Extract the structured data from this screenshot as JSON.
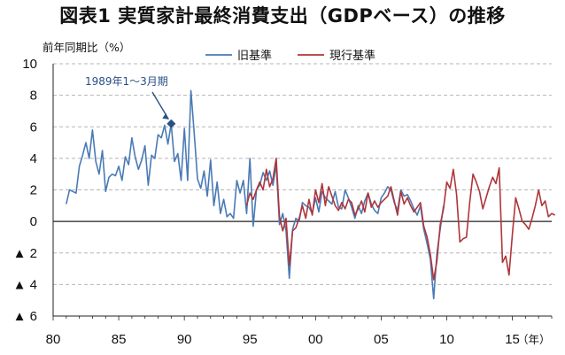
{
  "title": "図表1 実質家計最終消費支出（GDPベース）の推移",
  "chart_data": {
    "type": "line",
    "ylabel": "前年同期比（%）",
    "xlabel": "（年）",
    "ylim": [
      -6,
      10
    ],
    "xlim": [
      1980,
      2018
    ],
    "x_ticks": [
      {
        "value": 1980,
        "label": "80"
      },
      {
        "value": 1985,
        "label": "85"
      },
      {
        "value": 1990,
        "label": "90"
      },
      {
        "value": 1995,
        "label": "95"
      },
      {
        "value": 2000,
        "label": "00"
      },
      {
        "value": 2005,
        "label": "05"
      },
      {
        "value": 2010,
        "label": "10"
      },
      {
        "value": 2015,
        "label": "15"
      }
    ],
    "y_ticks": [
      {
        "value": 10,
        "label": "10"
      },
      {
        "value": 8,
        "label": "8"
      },
      {
        "value": 6,
        "label": "6"
      },
      {
        "value": 4,
        "label": "4"
      },
      {
        "value": 2,
        "label": "2"
      },
      {
        "value": 0,
        "label": "0"
      },
      {
        "value": -2,
        "label": "▲ 2"
      },
      {
        "value": -4,
        "label": "▲ 4"
      },
      {
        "value": -6,
        "label": "▲ 6"
      }
    ],
    "grid": true,
    "legend_position": "top",
    "annotation": {
      "text": "1989年1～3月期",
      "x": 1989.0,
      "y": 6.2
    },
    "series": [
      {
        "name": "旧基準",
        "color": "#4a7ab5",
        "points": [
          [
            1981.0,
            1.1
          ],
          [
            1981.25,
            2.0
          ],
          [
            1981.5,
            1.9
          ],
          [
            1981.75,
            1.8
          ],
          [
            1982.0,
            3.5
          ],
          [
            1982.25,
            4.2
          ],
          [
            1982.5,
            5.0
          ],
          [
            1982.75,
            4.0
          ],
          [
            1983.0,
            5.8
          ],
          [
            1983.25,
            3.8
          ],
          [
            1983.5,
            3.0
          ],
          [
            1983.75,
            4.5
          ],
          [
            1984.0,
            1.9
          ],
          [
            1984.25,
            2.8
          ],
          [
            1984.5,
            3.0
          ],
          [
            1984.75,
            2.9
          ],
          [
            1985.0,
            3.5
          ],
          [
            1985.25,
            2.6
          ],
          [
            1985.5,
            4.1
          ],
          [
            1985.75,
            3.6
          ],
          [
            1986.0,
            5.3
          ],
          [
            1986.25,
            4.1
          ],
          [
            1986.5,
            3.3
          ],
          [
            1986.75,
            3.9
          ],
          [
            1987.0,
            4.8
          ],
          [
            1987.25,
            2.3
          ],
          [
            1987.5,
            4.2
          ],
          [
            1987.75,
            4.0
          ],
          [
            1988.0,
            5.5
          ],
          [
            1988.25,
            5.3
          ],
          [
            1988.5,
            6.1
          ],
          [
            1988.75,
            4.9
          ],
          [
            1989.0,
            6.2
          ],
          [
            1989.25,
            3.8
          ],
          [
            1989.5,
            4.3
          ],
          [
            1989.75,
            2.6
          ],
          [
            1990.0,
            5.9
          ],
          [
            1990.25,
            2.6
          ],
          [
            1990.5,
            8.3
          ],
          [
            1990.75,
            5.6
          ],
          [
            1991.0,
            2.7
          ],
          [
            1991.25,
            2.1
          ],
          [
            1991.5,
            3.2
          ],
          [
            1991.75,
            1.6
          ],
          [
            1992.0,
            3.9
          ],
          [
            1992.25,
            1.0
          ],
          [
            1992.5,
            2.5
          ],
          [
            1992.75,
            0.5
          ],
          [
            1993.0,
            1.4
          ],
          [
            1993.25,
            0.3
          ],
          [
            1993.5,
            0.5
          ],
          [
            1993.75,
            0.2
          ],
          [
            1994.0,
            2.6
          ],
          [
            1994.25,
            1.8
          ],
          [
            1994.5,
            2.6
          ],
          [
            1994.75,
            0.5
          ],
          [
            1995.0,
            4.0
          ],
          [
            1995.25,
            -0.3
          ],
          [
            1995.5,
            2.0
          ],
          [
            1995.75,
            2.3
          ],
          [
            1996.0,
            3.1
          ],
          [
            1996.25,
            2.6
          ],
          [
            1996.5,
            3.2
          ],
          [
            1996.75,
            2.3
          ],
          [
            1997.0,
            3.6
          ],
          [
            1997.25,
            -0.2
          ],
          [
            1997.5,
            0.5
          ],
          [
            1997.75,
            -0.6
          ],
          [
            1998.0,
            -3.6
          ],
          [
            1998.25,
            -0.5
          ],
          [
            1998.5,
            0.2
          ],
          [
            1998.75,
            0.0
          ],
          [
            1999.0,
            1.2
          ],
          [
            1999.25,
            1.0
          ],
          [
            1999.5,
            0.9
          ],
          [
            1999.75,
            0.5
          ],
          [
            2000.0,
            1.5
          ],
          [
            2000.25,
            0.6
          ],
          [
            2000.5,
            1.9
          ],
          [
            2000.75,
            1.5
          ],
          [
            2001.0,
            1.3
          ],
          [
            2001.25,
            1.1
          ],
          [
            2001.5,
            1.9
          ],
          [
            2001.75,
            0.9
          ],
          [
            2002.0,
            0.8
          ],
          [
            2002.25,
            2.0
          ],
          [
            2002.5,
            1.5
          ],
          [
            2002.75,
            0.9
          ],
          [
            2003.0,
            0.2
          ],
          [
            2003.25,
            1.0
          ],
          [
            2003.5,
            0.5
          ],
          [
            2003.75,
            1.3
          ],
          [
            2004.0,
            1.8
          ],
          [
            2004.25,
            1.1
          ],
          [
            2004.5,
            0.7
          ],
          [
            2004.75,
            0.5
          ],
          [
            2005.0,
            1.5
          ],
          [
            2005.25,
            1.8
          ],
          [
            2005.5,
            2.2
          ],
          [
            2005.75,
            2.0
          ],
          [
            2006.0,
            1.2
          ],
          [
            2006.25,
            0.7
          ],
          [
            2006.5,
            2.0
          ],
          [
            2006.75,
            1.6
          ],
          [
            2007.0,
            1.7
          ],
          [
            2007.25,
            1.3
          ],
          [
            2007.5,
            0.8
          ],
          [
            2007.75,
            0.4
          ],
          [
            2008.0,
            1.0
          ],
          [
            2008.25,
            -0.5
          ],
          [
            2008.5,
            -1.4
          ],
          [
            2008.75,
            -2.4
          ],
          [
            2009.0,
            -4.9
          ],
          [
            2009.25,
            -2.0
          ],
          [
            2009.5,
            -0.5
          ],
          [
            2009.75,
            1.0
          ]
        ]
      },
      {
        "name": "現行基準",
        "color": "#b0353a",
        "points": [
          [
            1994.75,
            1.0
          ],
          [
            1995.0,
            1.8
          ],
          [
            1995.25,
            1.4
          ],
          [
            1995.5,
            2.0
          ],
          [
            1995.75,
            2.5
          ],
          [
            1996.0,
            2.0
          ],
          [
            1996.25,
            3.3
          ],
          [
            1996.5,
            2.2
          ],
          [
            1996.75,
            2.7
          ],
          [
            1997.0,
            4.0
          ],
          [
            1997.25,
            0.3
          ],
          [
            1997.5,
            -0.6
          ],
          [
            1997.75,
            0.2
          ],
          [
            1998.0,
            -2.8
          ],
          [
            1998.25,
            -0.6
          ],
          [
            1998.5,
            -0.4
          ],
          [
            1998.75,
            0.2
          ],
          [
            1999.0,
            1.0
          ],
          [
            1999.25,
            0.2
          ],
          [
            1999.5,
            1.4
          ],
          [
            1999.75,
            0.4
          ],
          [
            2000.0,
            2.0
          ],
          [
            2000.25,
            1.2
          ],
          [
            2000.5,
            2.4
          ],
          [
            2000.75,
            1.0
          ],
          [
            2001.0,
            2.2
          ],
          [
            2001.25,
            1.6
          ],
          [
            2001.5,
            1.0
          ],
          [
            2001.75,
            0.7
          ],
          [
            2002.0,
            1.2
          ],
          [
            2002.25,
            0.8
          ],
          [
            2002.5,
            1.4
          ],
          [
            2002.75,
            1.2
          ],
          [
            2003.0,
            0.4
          ],
          [
            2003.25,
            0.8
          ],
          [
            2003.5,
            1.3
          ],
          [
            2003.75,
            0.6
          ],
          [
            2004.0,
            1.8
          ],
          [
            2004.25,
            0.9
          ],
          [
            2004.5,
            1.3
          ],
          [
            2004.75,
            0.9
          ],
          [
            2005.0,
            1.2
          ],
          [
            2005.25,
            1.4
          ],
          [
            2005.5,
            1.6
          ],
          [
            2005.75,
            2.2
          ],
          [
            2006.0,
            1.3
          ],
          [
            2006.25,
            0.4
          ],
          [
            2006.5,
            1.9
          ],
          [
            2006.75,
            1.1
          ],
          [
            2007.0,
            1.5
          ],
          [
            2007.25,
            1.0
          ],
          [
            2007.5,
            0.6
          ],
          [
            2007.75,
            0.9
          ],
          [
            2008.0,
            1.2
          ],
          [
            2008.25,
            -0.3
          ],
          [
            2008.5,
            -1.0
          ],
          [
            2008.75,
            -2.1
          ],
          [
            2009.0,
            -3.7
          ],
          [
            2009.25,
            -2.5
          ],
          [
            2009.5,
            -0.2
          ],
          [
            2009.75,
            0.8
          ],
          [
            2010.0,
            2.5
          ],
          [
            2010.25,
            2.1
          ],
          [
            2010.5,
            3.3
          ],
          [
            2010.75,
            1.7
          ],
          [
            2011.0,
            -1.3
          ],
          [
            2011.25,
            -1.1
          ],
          [
            2011.5,
            -1.0
          ],
          [
            2011.75,
            1.2
          ],
          [
            2012.0,
            3.0
          ],
          [
            2012.25,
            2.5
          ],
          [
            2012.5,
            1.9
          ],
          [
            2012.75,
            0.8
          ],
          [
            2013.0,
            1.5
          ],
          [
            2013.25,
            2.2
          ],
          [
            2013.5,
            2.8
          ],
          [
            2013.75,
            2.4
          ],
          [
            2014.0,
            3.4
          ],
          [
            2014.25,
            -2.6
          ],
          [
            2014.5,
            -2.2
          ],
          [
            2014.75,
            -3.4
          ],
          [
            2015.0,
            -0.8
          ],
          [
            2015.25,
            1.5
          ],
          [
            2015.5,
            0.8
          ],
          [
            2015.75,
            0.0
          ],
          [
            2016.0,
            -0.2
          ],
          [
            2016.25,
            -0.5
          ],
          [
            2016.5,
            0.2
          ],
          [
            2016.75,
            1.0
          ],
          [
            2017.0,
            2.0
          ],
          [
            2017.25,
            1.0
          ],
          [
            2017.5,
            1.3
          ],
          [
            2017.75,
            0.3
          ],
          [
            2018.0,
            0.5
          ],
          [
            2018.25,
            0.4
          ]
        ]
      }
    ]
  }
}
